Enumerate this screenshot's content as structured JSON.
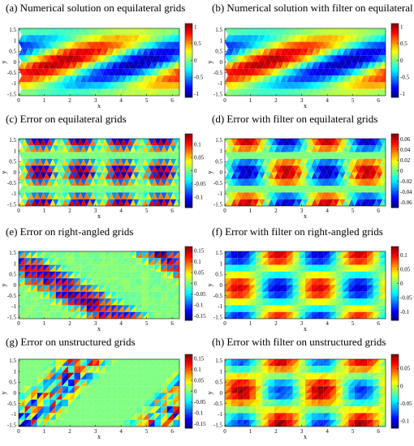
{
  "chart_data": [
    {
      "id": "a",
      "type": "heatmap",
      "title": "(a) Numerical solution on equilateral grids",
      "grid": "equilateral",
      "field": "solution",
      "filtered": false,
      "xlabel": "x",
      "ylabel": "y",
      "xlim": [
        0,
        6.28
      ],
      "ylim": [
        -1.57,
        1.57
      ],
      "xticks": [
        "0",
        "1",
        "2",
        "3",
        "4",
        "5",
        "6"
      ],
      "yticks": [
        "1.5",
        "1",
        "0.5",
        "0",
        "-0.5",
        "-1",
        "-1.5"
      ],
      "clim": [
        -1.1,
        1.1
      ],
      "cticks": [
        "1",
        "0.5",
        "0",
        "-0.5",
        "-1"
      ],
      "colormap": "jet"
    },
    {
      "id": "b",
      "type": "heatmap",
      "title": "(b) Numerical solution with filter on equilateral grids",
      "grid": "equilateral",
      "field": "solution",
      "filtered": true,
      "xlabel": "x",
      "ylabel": "y",
      "xlim": [
        0,
        6.28
      ],
      "ylim": [
        -1.57,
        1.57
      ],
      "xticks": [
        "0",
        "1",
        "2",
        "3",
        "4",
        "5",
        "6"
      ],
      "yticks": [
        "1.5",
        "1",
        "0.5",
        "0",
        "-0.5",
        "-1",
        "-1.5"
      ],
      "clim": [
        -1.1,
        1.1
      ],
      "cticks": [
        "1",
        "0.5",
        "0",
        "-0.5",
        "-1"
      ],
      "colormap": "jet"
    },
    {
      "id": "c",
      "type": "heatmap",
      "title": "(c) Error on equilateral grids",
      "grid": "equilateral",
      "field": "error",
      "filtered": false,
      "xlabel": "x",
      "ylabel": "y",
      "xlim": [
        0,
        6.28
      ],
      "ylim": [
        -1.57,
        1.57
      ],
      "xticks": [
        "0",
        "1",
        "2",
        "3",
        "4",
        "5",
        "6"
      ],
      "yticks": [
        "1.5",
        "1",
        "0.5",
        "0",
        "-0.5",
        "-1",
        "-1.5"
      ],
      "clim": [
        -0.14,
        0.14
      ],
      "cticks": [
        "0.1",
        "0.05",
        "0",
        "-0.05",
        "-0.1"
      ],
      "colormap": "jet"
    },
    {
      "id": "d",
      "type": "heatmap",
      "title": "(d) Error with filter on equilateral grids",
      "grid": "equilateral",
      "field": "error",
      "filtered": true,
      "xlabel": "x",
      "ylabel": "y",
      "xlim": [
        0,
        6.28
      ],
      "ylim": [
        -1.57,
        1.57
      ],
      "xticks": [
        "0",
        "1",
        "2",
        "3",
        "4",
        "5",
        "6"
      ],
      "yticks": [
        "1.5",
        "1",
        "0.5",
        "0",
        "-0.5",
        "-1",
        "-1.5"
      ],
      "clim": [
        -0.07,
        0.07
      ],
      "cticks": [
        "0.06",
        "0.04",
        "0.02",
        "0",
        "-0.02",
        "-0.04",
        "-0.06"
      ],
      "colormap": "jet"
    },
    {
      "id": "e",
      "type": "heatmap",
      "title": "(e) Error on right-angled grids",
      "grid": "right-angled",
      "field": "error",
      "filtered": false,
      "xlabel": "x",
      "ylabel": "y",
      "xlim": [
        0,
        6.28
      ],
      "ylim": [
        -1.57,
        1.57
      ],
      "xticks": [
        "0",
        "1",
        "2",
        "3",
        "4",
        "5",
        "6"
      ],
      "yticks": [
        "1.5",
        "1",
        "0.5",
        "0",
        "-0.5",
        "-1",
        "-1.5"
      ],
      "clim": [
        -0.17,
        0.17
      ],
      "cticks": [
        "0.15",
        "0.1",
        "0.05",
        "0",
        "-0.05",
        "-0.1",
        "-0.15"
      ],
      "colormap": "jet"
    },
    {
      "id": "f",
      "type": "heatmap",
      "title": "(f) Error with filter on right-angled grids",
      "grid": "right-angled",
      "field": "error",
      "filtered": true,
      "xlabel": "x",
      "ylabel": "y",
      "xlim": [
        0,
        6.28
      ],
      "ylim": [
        -1.57,
        1.57
      ],
      "xticks": [
        "0",
        "1",
        "2",
        "3",
        "4",
        "5",
        "6"
      ],
      "yticks": [
        "1.5",
        "1",
        "0.5",
        "0",
        "-0.5",
        "-1",
        "-1.5"
      ],
      "clim": [
        -0.13,
        0.13
      ],
      "cticks": [
        "0.1",
        "0.05",
        "0",
        "-0.05",
        "-0.1"
      ],
      "colormap": "jet"
    },
    {
      "id": "g",
      "type": "heatmap",
      "title": "(g) Error on unstructured grids",
      "grid": "unstructured",
      "field": "error",
      "filtered": false,
      "xlabel": "x",
      "ylabel": "y",
      "xlim": [
        0,
        6.28
      ],
      "ylim": [
        -1.57,
        1.57
      ],
      "xticks": [
        "0",
        "1",
        "2",
        "3",
        "4",
        "5",
        "6"
      ],
      "yticks": [
        "1.5",
        "1",
        "0.5",
        "0",
        "-0.5",
        "-1",
        "-1.5"
      ],
      "clim": [
        -0.17,
        0.17
      ],
      "cticks": [
        "0.15",
        "0.1",
        "0.05",
        "0",
        "-0.05",
        "-0.1",
        "-0.15"
      ],
      "colormap": "jet"
    },
    {
      "id": "h",
      "type": "heatmap",
      "title": "(h) Error with filter on unstructured grids",
      "grid": "unstructured",
      "field": "error",
      "filtered": true,
      "xlabel": "x",
      "ylabel": "y",
      "xlim": [
        0,
        6.28
      ],
      "ylim": [
        -1.57,
        1.57
      ],
      "xticks": [
        "0",
        "1",
        "2",
        "3",
        "4",
        "5",
        "6"
      ],
      "yticks": [
        "1.5",
        "1",
        "0.5",
        "0",
        "-0.5",
        "-1",
        "-1.5"
      ],
      "clim": [
        -0.12,
        0.09
      ],
      "cticks": [
        "0.05",
        "0",
        "-0.05",
        "-0.1"
      ],
      "colormap": "jet"
    }
  ]
}
